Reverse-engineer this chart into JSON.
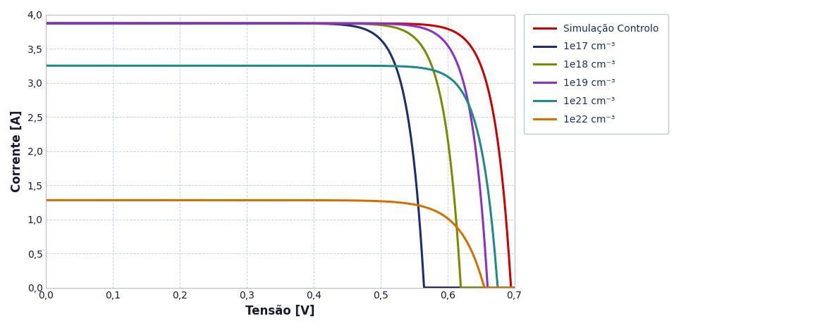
{
  "title": "",
  "xlabel": "Tensão [V]",
  "ylabel": "Corrente [A]",
  "xlim": [
    0.0,
    0.7
  ],
  "ylim": [
    0.0,
    4.0
  ],
  "xticks": [
    0.0,
    0.1,
    0.2,
    0.3,
    0.4,
    0.5,
    0.6,
    0.7
  ],
  "yticks": [
    0.0,
    0.5,
    1.0,
    1.5,
    2.0,
    2.5,
    3.0,
    3.5,
    4.0
  ],
  "grid_color": "#c8d4e0",
  "background_color": "#ffffff",
  "curves": [
    {
      "label": "Simulação Controlo",
      "color": "#cc0000",
      "isc": 3.87,
      "voc": 0.695,
      "ideality": 0.95
    },
    {
      "label": "1e17 cm⁻³",
      "color": "#1c2d6b",
      "isc": 3.87,
      "voc": 0.565,
      "ideality": 0.9
    },
    {
      "label": "1e18 cm⁻³",
      "color": "#7a8b00",
      "isc": 3.87,
      "voc": 0.62,
      "ideality": 0.92
    },
    {
      "label": "1e19 cm⁻³",
      "color": "#8b2fc9",
      "isc": 3.87,
      "voc": 0.66,
      "ideality": 0.93
    },
    {
      "label": "1e21 cm⁻³",
      "color": "#1a8a8a",
      "isc": 3.25,
      "voc": 0.675,
      "ideality": 0.96
    },
    {
      "label": "1e22 cm⁻³",
      "color": "#d47000",
      "isc": 1.28,
      "voc": 0.655,
      "ideality": 1.35
    }
  ],
  "legend_fontsize": 10,
  "axis_label_fontsize": 12,
  "tick_fontsize": 10,
  "line_width": 2.2
}
